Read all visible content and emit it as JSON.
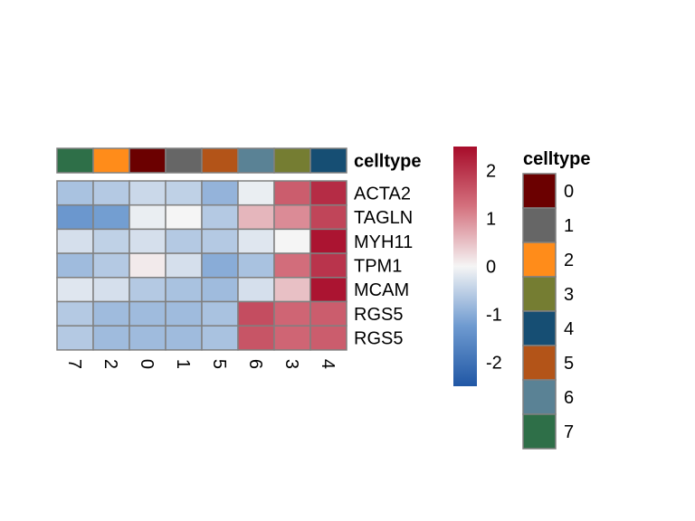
{
  "chart_data": {
    "type": "heatmap",
    "columns": [
      "7",
      "2",
      "0",
      "1",
      "5",
      "6",
      "3",
      "4"
    ],
    "rows": [
      "ACTA2",
      "TAGLN",
      "MYH11",
      "TPM1",
      "MCAM",
      "RGS5",
      "RGS5"
    ],
    "values": [
      [
        -0.7,
        -0.6,
        -0.4,
        -0.5,
        -0.9,
        -0.1,
        1.5,
        2.1
      ],
      [
        -1.3,
        -1.2,
        -0.1,
        0.0,
        -0.6,
        0.6,
        1.0,
        1.8
      ],
      [
        -0.3,
        -0.5,
        -0.3,
        -0.6,
        -0.6,
        -0.2,
        0.0,
        2.4
      ],
      [
        -0.8,
        -0.6,
        0.1,
        -0.3,
        -1.0,
        -0.7,
        1.3,
        2.0
      ],
      [
        -0.2,
        -0.3,
        -0.6,
        -0.7,
        -0.8,
        -0.3,
        0.5,
        2.4
      ],
      [
        -0.6,
        -0.8,
        -0.8,
        -0.8,
        -0.7,
        1.7,
        1.4,
        1.5
      ],
      [
        -0.6,
        -0.8,
        -0.8,
        -0.8,
        -0.7,
        1.6,
        1.4,
        1.5
      ]
    ],
    "color_scale": {
      "min": -2.5,
      "max": 2.5,
      "stops": [
        {
          "value": -2.5,
          "color": "#2057a5"
        },
        {
          "value": -1.25,
          "color": "#6e9ad0"
        },
        {
          "value": 0,
          "color": "#f5f5f5"
        },
        {
          "value": 1.25,
          "color": "#d4717e"
        },
        {
          "value": 2.5,
          "color": "#a70c2a"
        }
      ],
      "ticks": [
        "2",
        "1",
        "0",
        "-1",
        "-2"
      ],
      "tick_values": [
        2,
        1,
        0,
        -1,
        -2
      ]
    },
    "annotation": {
      "title": "celltype",
      "column_values": [
        "7",
        "2",
        "0",
        "1",
        "5",
        "6",
        "3",
        "4"
      ],
      "legend": [
        {
          "label": "0",
          "color": "#6b0000"
        },
        {
          "label": "1",
          "color": "#666666"
        },
        {
          "label": "2",
          "color": "#ff8c1a"
        },
        {
          "label": "3",
          "color": "#757d32"
        },
        {
          "label": "4",
          "color": "#164e73"
        },
        {
          "label": "5",
          "color": "#b35418"
        },
        {
          "label": "6",
          "color": "#5a8295"
        },
        {
          "label": "7",
          "color": "#2e6f48"
        }
      ]
    }
  }
}
